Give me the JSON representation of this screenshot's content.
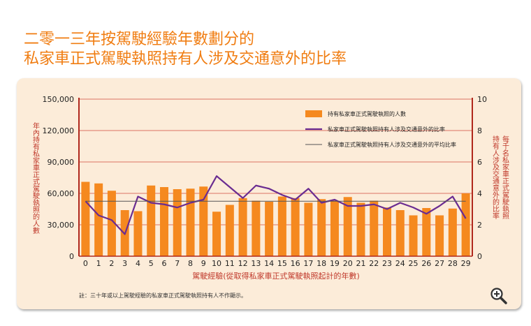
{
  "page": {
    "title_line1": "二零一三年按駕駛經驗年數劃分的",
    "title_line2": "私家車正式駕駛執照持有人涉及交通意外的比率"
  },
  "chart_data": {
    "type": "bar+line",
    "title": "二零一三年按駕駛經驗年數劃分的私家車正式駕駛執照持有人涉及交通意外的比率",
    "xlabel": "駕駛經驗(從取得私家車正式駕駛執照起計的年數)",
    "ylabel_left": "年內持有私家車正式駕駛執照的人數",
    "ylabel_right": "每千名私家車正式駕駛執照持有人涉及交通意外的比率",
    "ylim_left": [
      0,
      150000
    ],
    "ylim_right": [
      0,
      10
    ],
    "yticks_left": [
      "0",
      "30,000",
      "60,000",
      "90,000",
      "120,000",
      "150,000"
    ],
    "yticks_right": [
      "0",
      "2",
      "4",
      "6",
      "8",
      "10"
    ],
    "categories": [
      "0",
      "1",
      "2",
      "3",
      "4",
      "5",
      "6",
      "7",
      "8",
      "9",
      "10",
      "11",
      "12",
      "13",
      "14",
      "15",
      "16",
      "17",
      "18",
      "19",
      "20",
      "21",
      "22",
      "23",
      "24",
      "25",
      "26",
      "27",
      "28",
      "29"
    ],
    "legend_position": "top-right",
    "grid": "horizontal",
    "series": [
      {
        "name": "持有私家車正式駕駛執照的人數",
        "kind": "bar",
        "axis": "left",
        "color": "#f5891f",
        "values": [
          71000,
          69500,
          62500,
          44000,
          43000,
          67500,
          66000,
          64000,
          64500,
          66500,
          42500,
          49000,
          55500,
          53000,
          52000,
          57000,
          55500,
          51000,
          54500,
          53000,
          56500,
          51000,
          53000,
          46500,
          44000,
          39000,
          46000,
          39000,
          45500,
          60000
        ]
      },
      {
        "name": "私家車正式駕駛執照持有人涉及交通意外的比率",
        "kind": "line",
        "axis": "right",
        "color": "#6a2c91",
        "values": [
          3.5,
          2.6,
          2.3,
          1.4,
          3.8,
          3.4,
          3.3,
          3.1,
          3.4,
          3.6,
          5.1,
          4.4,
          3.7,
          4.5,
          4.3,
          3.9,
          3.6,
          4.3,
          3.4,
          3.6,
          3.2,
          3.2,
          3.3,
          3.0,
          3.4,
          3.1,
          2.7,
          3.2,
          3.8,
          2.4
        ]
      },
      {
        "name": "私家車正式駕駛執照持有人涉及交通意外的平均比率",
        "kind": "line",
        "axis": "right",
        "color": "#555555",
        "values": [
          3.5,
          3.5,
          3.5,
          3.5,
          3.5,
          3.5,
          3.5,
          3.5,
          3.5,
          3.5,
          3.5,
          3.5,
          3.5,
          3.5,
          3.5,
          3.5,
          3.5,
          3.5,
          3.5,
          3.5,
          3.5,
          3.5,
          3.5,
          3.5,
          3.5,
          3.5,
          3.5,
          3.5,
          3.5,
          3.5
        ]
      }
    ],
    "footnote": "註：三十年或以上駕駛經驗的私家車正式駕駛執照持有人不作顯示。"
  },
  "icons": {
    "zoom": "zoom-in-icon"
  }
}
